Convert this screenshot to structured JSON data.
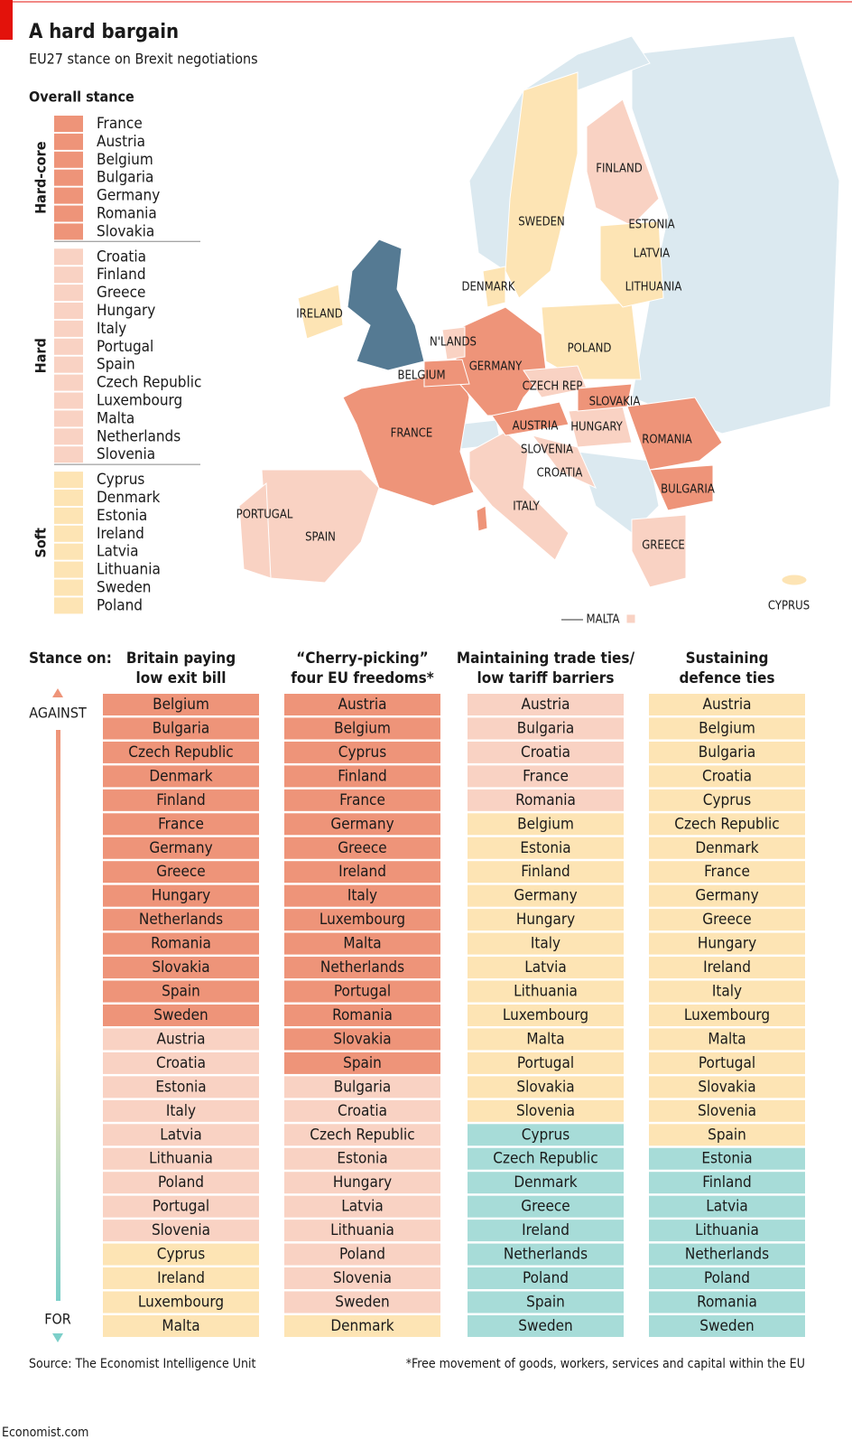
{
  "header": {
    "title": "A hard bargain",
    "subtitle": "EU27 stance on Brexit negotiations"
  },
  "legend": {
    "title": "Overall stance",
    "groups": [
      {
        "label": "Hard-core",
        "color": "#ee9479",
        "label_color": "#e8805f",
        "items": [
          "France",
          "Austria",
          "Belgium",
          "Bulgaria",
          "Germany",
          "Romania",
          "Slovakia"
        ]
      },
      {
        "label": "Hard",
        "color": "#f9d2c3",
        "label_color": "#e8805f",
        "items": [
          "Croatia",
          "Finland",
          "Greece",
          "Hungary",
          "Italy",
          "Portugal",
          "Spain",
          "Czech Republic",
          "Luxembourg",
          "Malta",
          "Netherlands",
          "Slovenia"
        ]
      },
      {
        "label": "Soft",
        "color": "#fde4b4",
        "label_color": "#f0a63a",
        "items": [
          "Cyprus",
          "Denmark",
          "Estonia",
          "Ireland",
          "Latvia",
          "Lithuania",
          "Sweden",
          "Poland"
        ]
      }
    ]
  },
  "map": {
    "labels": [
      "IRELAND",
      "N'LANDS",
      "BELGIUM",
      "GERMANY",
      "FRANCE",
      "PORTUGAL",
      "SPAIN",
      "ITALY",
      "DENMARK",
      "SWEDEN",
      "FINLAND",
      "ESTONIA",
      "LATVIA",
      "LITHUANIA",
      "POLAND",
      "CZECH REP",
      "SLOVAKIA",
      "AUSTRIA",
      "HUNGARY",
      "SLOVENIA",
      "CROATIA",
      "ROMANIA",
      "BULGARIA",
      "GREECE",
      "CYPRUS",
      "MALTA"
    ]
  },
  "table": {
    "stance_label": "Stance on:",
    "axis_top": "AGAINST",
    "axis_bottom": "FOR",
    "columns": [
      {
        "header": [
          "Britain paying",
          "low exit bill"
        ],
        "groups": [
          {
            "color": "#ee9479",
            "items": [
              "Belgium",
              "Bulgaria",
              "Czech Republic",
              "Denmark",
              "Finland",
              "France",
              "Germany",
              "Greece",
              "Hungary",
              "Netherlands",
              "Romania",
              "Slovakia",
              "Spain",
              "Sweden"
            ]
          },
          {
            "color": "#f9d2c3",
            "items": [
              "Austria",
              "Croatia",
              "Estonia",
              "Italy",
              "Latvia",
              "Lithuania",
              "Poland",
              "Portugal",
              "Slovenia"
            ]
          },
          {
            "color": "#fde4b4",
            "items": [
              "Cyprus",
              "Ireland",
              "Luxembourg",
              "Malta"
            ]
          }
        ]
      },
      {
        "header": [
          "“Cherry-picking”",
          "four EU freedoms*"
        ],
        "groups": [
          {
            "color": "#ee9479",
            "items": [
              "Austria",
              "Belgium",
              "Cyprus",
              "Finland",
              "France",
              "Germany",
              "Greece",
              "Ireland",
              "Italy",
              "Luxembourg",
              "Malta",
              "Netherlands",
              "Portugal",
              "Romania",
              "Slovakia",
              "Spain"
            ]
          },
          {
            "color": "#f9d2c3",
            "items": [
              "Bulgaria",
              "Croatia",
              "Czech Republic",
              "Estonia",
              "Hungary",
              "Latvia",
              "Lithuania",
              "Poland",
              "Slovenia",
              "Sweden"
            ]
          },
          {
            "color": "#fde4b4",
            "items": [
              "Denmark"
            ]
          }
        ]
      },
      {
        "header": [
          "Maintaining trade ties/",
          "low tariff barriers"
        ],
        "groups": [
          {
            "color": "#f9d2c3",
            "items": [
              "Austria",
              "Bulgaria",
              "Croatia",
              "France",
              "Romania"
            ]
          },
          {
            "color": "#fde4b4",
            "items": [
              "Belgium",
              "Estonia",
              "Finland",
              "Germany",
              "Hungary",
              "Italy",
              "Latvia",
              "Lithuania",
              "Luxembourg",
              "Malta",
              "Portugal",
              "Slovakia",
              "Slovenia"
            ]
          },
          {
            "color": "#a7dcd8",
            "items": [
              "Cyprus",
              "Czech Republic",
              "Denmark",
              "Greece",
              "Ireland",
              "Netherlands",
              "Poland",
              "Spain",
              "Sweden"
            ]
          }
        ]
      },
      {
        "header": [
          "Sustaining",
          "defence ties"
        ],
        "groups": [
          {
            "color": "#fde4b4",
            "items": [
              "Austria",
              "Belgium",
              "Bulgaria",
              "Croatia",
              "Cyprus",
              "Czech Republic",
              "Denmark",
              "France",
              "Germany",
              "Greece",
              "Hungary",
              "Ireland",
              "Italy",
              "Luxembourg",
              "Malta",
              "Portugal",
              "Slovakia",
              "Slovenia",
              "Spain"
            ]
          },
          {
            "color": "#a7dcd8",
            "items": [
              "Estonia",
              "Finland",
              "Latvia",
              "Lithuania",
              "Netherlands",
              "Poland",
              "Romania",
              "Sweden"
            ]
          }
        ]
      }
    ]
  },
  "footer": {
    "source": "Source: The Economist Intelligence Unit",
    "note": "*Free movement of goods, workers, services and capital within the EU",
    "brand": "Economist.com"
  }
}
